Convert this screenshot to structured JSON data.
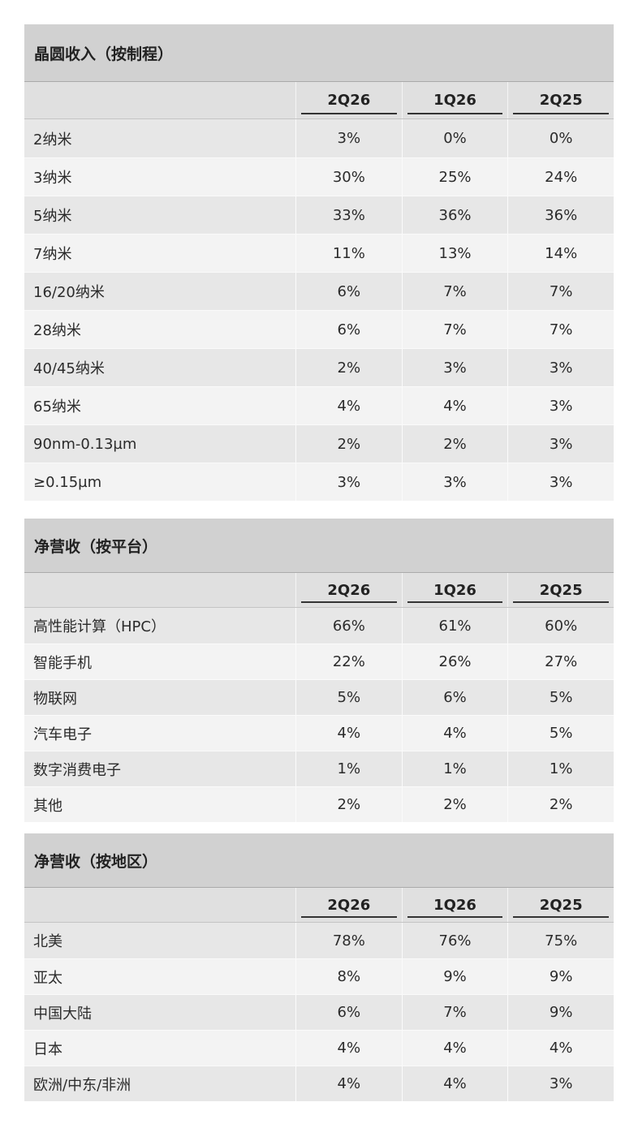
{
  "tables": [
    {
      "title": "晶圆收入（按制程）",
      "columns": [
        "2Q26",
        "1Q26",
        "2Q25"
      ],
      "rows": [
        {
          "label": "2纳米",
          "values": [
            "3%",
            "0%",
            "0%"
          ]
        },
        {
          "label": "3纳米",
          "values": [
            "30%",
            "25%",
            "24%"
          ]
        },
        {
          "label": "5纳米",
          "values": [
            "33%",
            "36%",
            "36%"
          ]
        },
        {
          "label": "7纳米",
          "values": [
            "11%",
            "13%",
            "14%"
          ]
        },
        {
          "label": "16/20纳米",
          "values": [
            "6%",
            "7%",
            "7%"
          ]
        },
        {
          "label": "28纳米",
          "values": [
            "6%",
            "7%",
            "7%"
          ]
        },
        {
          "label": "40/45纳米",
          "values": [
            "2%",
            "3%",
            "3%"
          ]
        },
        {
          "label": "65纳米",
          "values": [
            "4%",
            "4%",
            "3%"
          ]
        },
        {
          "label": "90nm-0.13µm",
          "values": [
            "2%",
            "2%",
            "3%"
          ]
        },
        {
          "label": "≥0.15µm",
          "values": [
            "3%",
            "3%",
            "3%"
          ]
        }
      ]
    },
    {
      "title": "净营收（按平台）",
      "columns": [
        "2Q26",
        "1Q26",
        "2Q25"
      ],
      "rows": [
        {
          "label": "高性能计算（HPC）",
          "values": [
            "66%",
            "61%",
            "60%"
          ]
        },
        {
          "label": "智能手机",
          "values": [
            "22%",
            "26%",
            "27%"
          ]
        },
        {
          "label": "物联网",
          "values": [
            "5%",
            "6%",
            "5%"
          ]
        },
        {
          "label": "汽车电子",
          "values": [
            "4%",
            "4%",
            "5%"
          ]
        },
        {
          "label": "数字消费电子",
          "values": [
            "1%",
            "1%",
            "1%"
          ]
        },
        {
          "label": "其他",
          "values": [
            "2%",
            "2%",
            "2%"
          ]
        }
      ]
    },
    {
      "title": "净营收（按地区）",
      "columns": [
        "2Q26",
        "1Q26",
        "2Q25"
      ],
      "rows": [
        {
          "label": "北美",
          "values": [
            "78%",
            "76%",
            "75%"
          ]
        },
        {
          "label": "亚太",
          "values": [
            "8%",
            "9%",
            "9%"
          ]
        },
        {
          "label": "中国大陆",
          "values": [
            "6%",
            "7%",
            "9%"
          ]
        },
        {
          "label": "日本",
          "values": [
            "4%",
            "4%",
            "4%"
          ]
        },
        {
          "label": "欧洲/中东/非洲",
          "values": [
            "4%",
            "4%",
            "3%"
          ]
        }
      ]
    }
  ]
}
